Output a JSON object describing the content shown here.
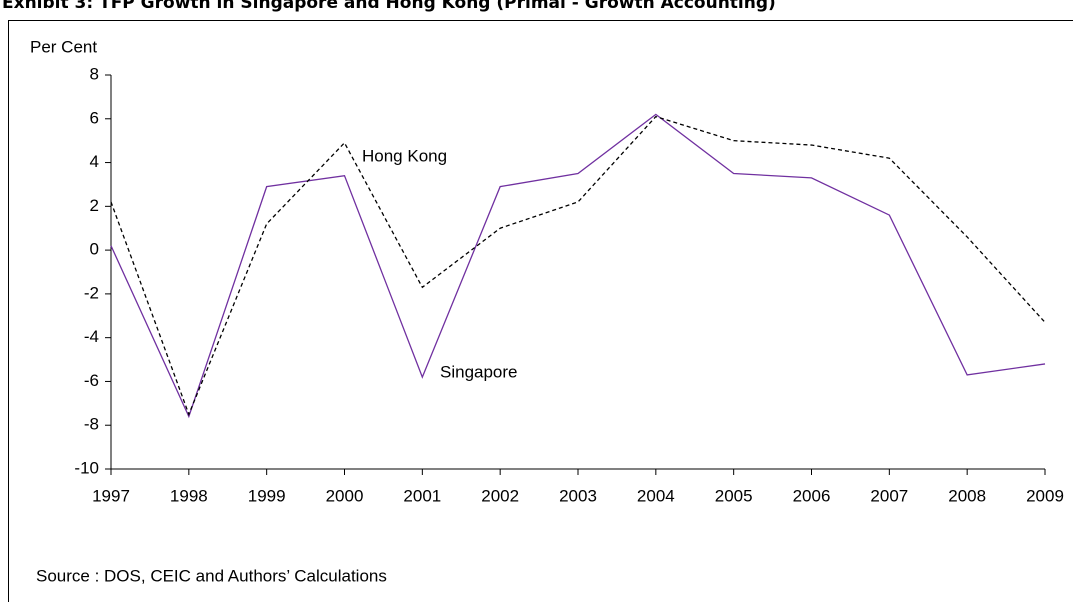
{
  "chart_data": {
    "type": "line",
    "title": "Exhibit 3: TFP Growth in Singapore and Hong Kong (Primal - Growth Accounting)",
    "y_label": "Per Cent",
    "source": "Source : DOS, CEIC and Authors’ Calculations",
    "x": [
      1997,
      1998,
      1999,
      2000,
      2001,
      2002,
      2003,
      2004,
      2005,
      2006,
      2007,
      2008,
      2009
    ],
    "xlim": [
      1997,
      2009
    ],
    "xticks": [
      1997,
      1998,
      1999,
      2000,
      2001,
      2002,
      2003,
      2004,
      2005,
      2006,
      2007,
      2008,
      2009
    ],
    "ylim": [
      -10,
      8
    ],
    "yticks": [
      -10,
      -8,
      -6,
      -4,
      -2,
      0,
      2,
      4,
      6,
      8
    ],
    "grid": false,
    "series": [
      {
        "name": "Singapore",
        "color": "#7030a0",
        "dash": false,
        "values": [
          0.2,
          -7.6,
          2.9,
          3.4,
          -5.8,
          2.9,
          3.5,
          6.2,
          3.5,
          3.3,
          1.6,
          -5.7,
          -5.2
        ]
      },
      {
        "name": "Hong Kong",
        "color": "#000000",
        "dash": true,
        "values": [
          2.2,
          -7.5,
          1.2,
          4.9,
          -1.7,
          1.0,
          2.2,
          6.1,
          5.0,
          4.8,
          4.2,
          0.6,
          -3.3
        ]
      }
    ]
  }
}
